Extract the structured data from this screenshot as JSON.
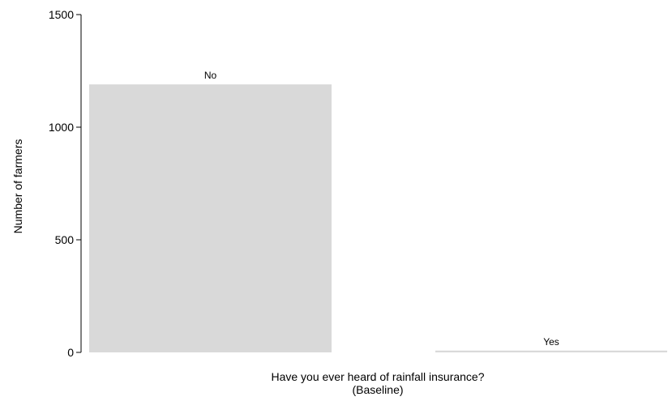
{
  "chart_data": {
    "type": "bar",
    "categories": [
      "No",
      "Yes"
    ],
    "values": [
      1190,
      8
    ],
    "ylabel": "Number of farmers",
    "xlabel_line1": "Have you ever heard of rainfall insurance?",
    "xlabel_line2": "(Baseline)",
    "ylim": [
      0,
      1500
    ],
    "yticks": [
      0,
      500,
      1000,
      1500
    ],
    "ytick_labels": [
      "0",
      "500",
      "1000",
      "1500"
    ],
    "bar_color": "#d9d9d9",
    "grid": false,
    "legend": "none"
  }
}
